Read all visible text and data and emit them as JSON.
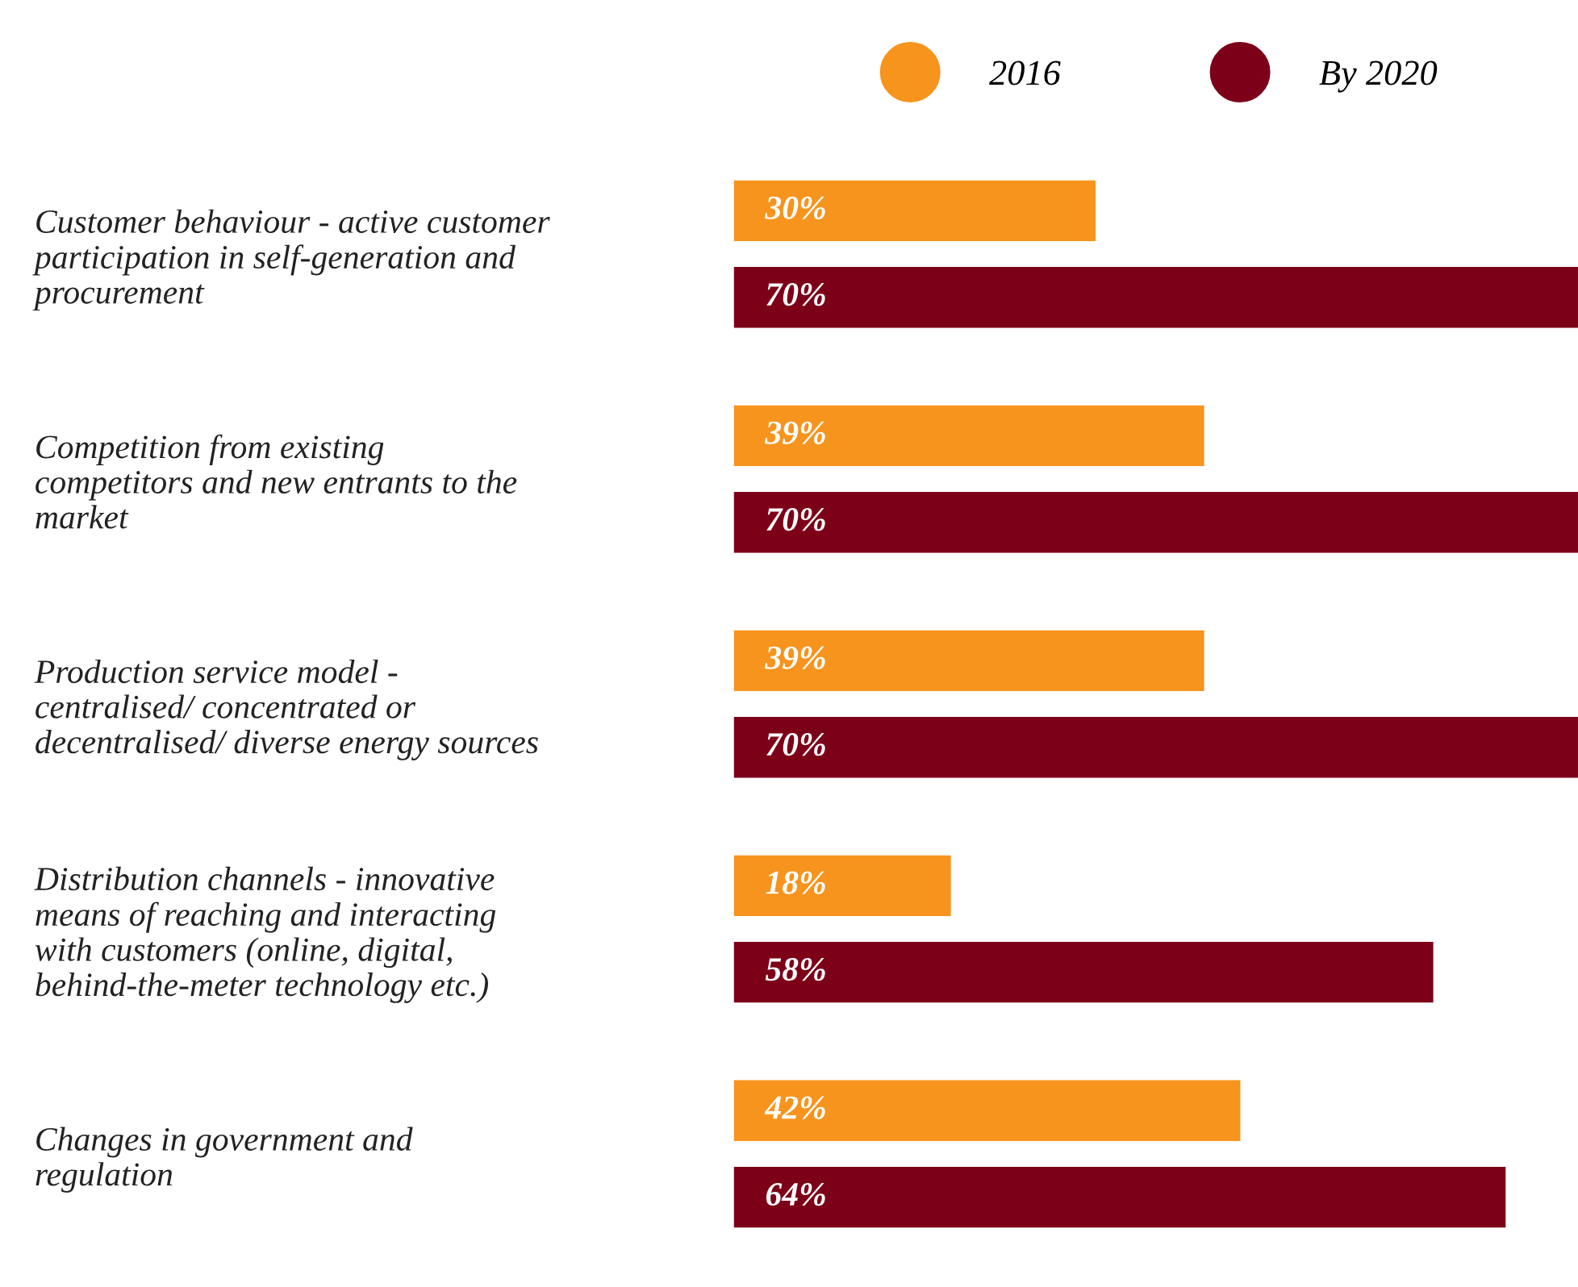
{
  "chart_data": {
    "type": "bar",
    "orientation": "horizontal",
    "legend": "top",
    "categories": [
      "Customer behaviour - active customer\nparticipation in self-generation and\nprocurement",
      "Competition from existing\ncompetitors and new entrants to the\nmarket",
      "Production service model -\ncentralised/ concentrated or\ndecentralised/ diverse energy sources",
      "Distribution channels - innovative\nmeans of reaching and interacting\nwith customers (online, digital,\nbehind-the-meter technology etc.)",
      "Changes in government and\nregulation"
    ],
    "series": [
      {
        "name": "2016",
        "color": "#f7941d",
        "values": [
          30,
          39,
          39,
          18,
          42
        ],
        "value_labels": [
          "30%",
          "39%",
          "39%",
          "18%",
          "42%"
        ]
      },
      {
        "name": "By 2020",
        "color": "#7d0019",
        "values": [
          70,
          70,
          70,
          58,
          64
        ],
        "value_labels": [
          "70%",
          "70%",
          "70%",
          "58%",
          "64%"
        ]
      }
    ]
  }
}
